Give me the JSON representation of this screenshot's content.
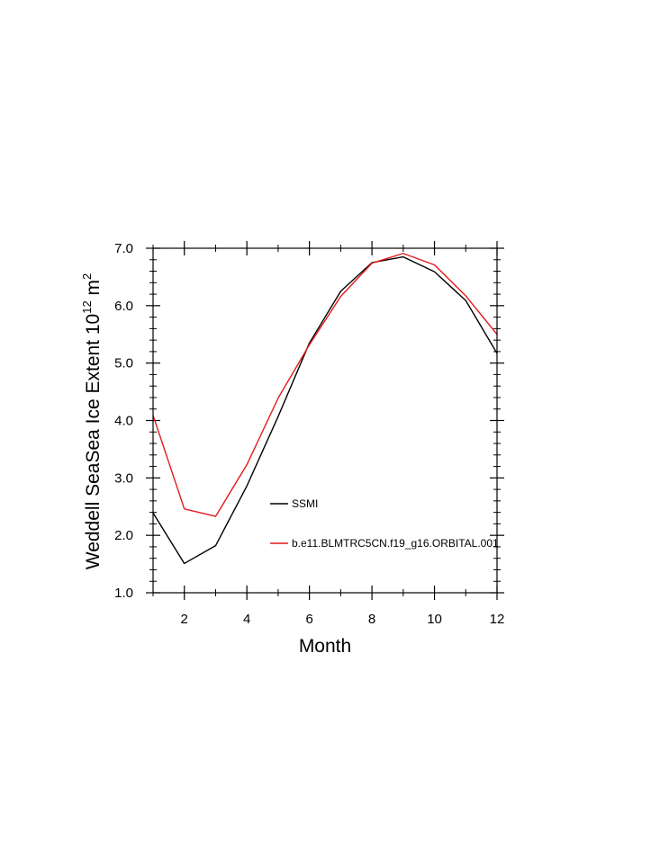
{
  "chart_data": {
    "type": "line",
    "title": "",
    "xlabel": "Month",
    "ylabel_main": "Weddell SeaSea Ice Extent 10",
    "ylabel_sup": "12",
    "ylabel_unit": " m",
    "ylabel_sup2": "2",
    "xlim": [
      1,
      12
    ],
    "ylim": [
      1.0,
      7.0
    ],
    "x_ticks": [
      2,
      4,
      6,
      8,
      10,
      12
    ],
    "x_tick_labels": [
      "2",
      "4",
      "6",
      "8",
      "10",
      "12"
    ],
    "y_ticks": [
      1.0,
      2.0,
      3.0,
      4.0,
      5.0,
      6.0,
      7.0
    ],
    "y_tick_labels": [
      "1.0",
      "2.0",
      "3.0",
      "4.0",
      "5.0",
      "6.0",
      "7.0"
    ],
    "x": [
      1,
      2,
      3,
      4,
      5,
      6,
      7,
      8,
      9,
      10,
      11,
      12
    ],
    "grid": false,
    "legend_placement": "lower-center inside",
    "series": [
      {
        "name": "SSMI",
        "color": "#000000",
        "values": [
          2.39,
          1.51,
          1.82,
          2.86,
          4.07,
          5.35,
          6.25,
          6.75,
          6.85,
          6.59,
          6.09,
          5.17
        ]
      },
      {
        "name": "b.e11.BLMTRC5CN.f19_g16.ORBITAL.001",
        "color": "#e41a1c",
        "values": [
          4.09,
          2.46,
          2.33,
          3.23,
          4.39,
          5.32,
          6.16,
          6.74,
          6.91,
          6.71,
          6.17,
          5.5
        ]
      }
    ]
  }
}
